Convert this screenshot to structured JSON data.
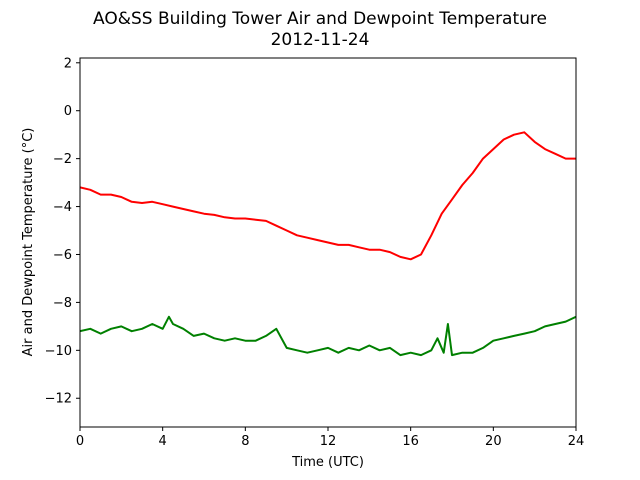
{
  "chart_data": {
    "type": "line",
    "title": "AO&SS Building Tower Air and Dewpoint Temperature",
    "subtitle": "2012-11-24",
    "xlabel": "Time (UTC)",
    "ylabel": "Air and Dewpoint Temperature (°C)",
    "xlim": [
      0,
      24
    ],
    "ylim": [
      -13.2,
      2.2
    ],
    "xticks": [
      0,
      4,
      8,
      12,
      16,
      20,
      24
    ],
    "xtick_labels": [
      "0",
      "4",
      "8",
      "12",
      "16",
      "20",
      "24"
    ],
    "yticks": [
      2,
      0,
      -2,
      -4,
      -6,
      -8,
      -10,
      -12
    ],
    "ytick_labels": [
      "2",
      "0",
      "−2",
      "−4",
      "−6",
      "−8",
      "−10",
      "−12"
    ],
    "grid": false,
    "series": [
      {
        "color": "#ff0000",
        "x": [
          0,
          0.5,
          1,
          1.5,
          2,
          2.5,
          3,
          3.5,
          4,
          4.5,
          5,
          5.5,
          6,
          6.5,
          7,
          7.5,
          8,
          8.5,
          9,
          9.5,
          10,
          10.5,
          11,
          11.5,
          12,
          12.5,
          13,
          13.5,
          14,
          14.5,
          15,
          15.5,
          16,
          16.5,
          17,
          17.5,
          18,
          18.5,
          19,
          19.5,
          20,
          20.5,
          21,
          21.5,
          22,
          22.5,
          23,
          23.5,
          24
        ],
        "y": [
          -3.2,
          -3.3,
          -3.5,
          -3.5,
          -3.6,
          -3.8,
          -3.85,
          -3.8,
          -3.9,
          -4.0,
          -4.1,
          -4.2,
          -4.3,
          -4.35,
          -4.45,
          -4.5,
          -4.5,
          -4.55,
          -4.6,
          -4.8,
          -5.0,
          -5.2,
          -5.3,
          -5.4,
          -5.5,
          -5.6,
          -5.6,
          -5.7,
          -5.8,
          -5.8,
          -5.9,
          -6.1,
          -6.2,
          -6.0,
          -5.2,
          -4.3,
          -3.7,
          -3.1,
          -2.6,
          -2.0,
          -1.6,
          -1.2,
          -1.0,
          -0.9,
          -1.3,
          -1.6,
          -1.8,
          -2.0,
          -2.0
        ]
      },
      {
        "color": "#008000",
        "x": [
          0,
          0.5,
          1,
          1.5,
          2,
          2.5,
          3,
          3.5,
          4,
          4.3,
          4.5,
          5,
          5.5,
          6,
          6.5,
          7,
          7.5,
          8,
          8.5,
          9,
          9.5,
          10,
          10.5,
          11,
          11.5,
          12,
          12.5,
          13,
          13.5,
          14,
          14.5,
          15,
          15.5,
          16,
          16.5,
          17,
          17.3,
          17.6,
          17.8,
          18,
          18.5,
          19,
          19.5,
          20,
          20.5,
          21,
          21.5,
          22,
          22.5,
          23,
          23.5,
          24
        ],
        "y": [
          -9.2,
          -9.1,
          -9.3,
          -9.1,
          -9.0,
          -9.2,
          -9.1,
          -8.9,
          -9.1,
          -8.6,
          -8.9,
          -9.1,
          -9.4,
          -9.3,
          -9.5,
          -9.6,
          -9.5,
          -9.6,
          -9.6,
          -9.4,
          -9.1,
          -9.9,
          -10.0,
          -10.1,
          -10.0,
          -9.9,
          -10.1,
          -9.9,
          -10.0,
          -9.8,
          -10.0,
          -9.9,
          -10.2,
          -10.1,
          -10.2,
          -10.0,
          -9.5,
          -10.1,
          -8.9,
          -10.2,
          -10.1,
          -10.1,
          -9.9,
          -9.6,
          -9.5,
          -9.4,
          -9.3,
          -9.2,
          -9.0,
          -8.9,
          -8.8,
          -8.6
        ]
      }
    ]
  }
}
